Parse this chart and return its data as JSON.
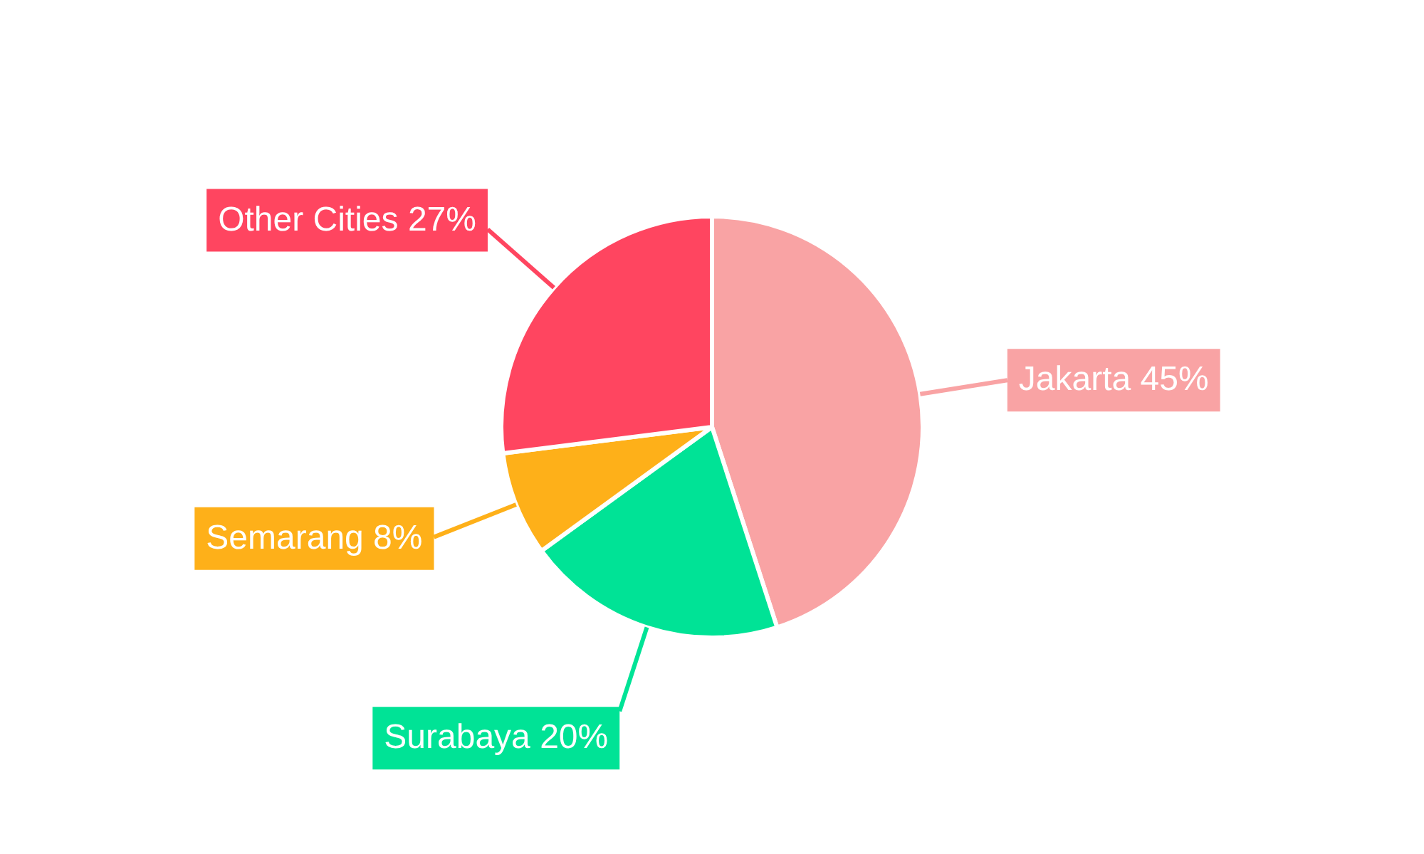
{
  "chart_data": {
    "type": "pie",
    "categories": [
      "Jakarta",
      "Surabaya",
      "Semarang",
      "Other Cities"
    ],
    "values": [
      45,
      20,
      8,
      27
    ],
    "colors": [
      "#f9a3a4",
      "#00e396",
      "#feb019",
      "#ff4560"
    ],
    "value_labels": [
      "45%",
      "20%",
      "8%",
      "27%"
    ]
  }
}
